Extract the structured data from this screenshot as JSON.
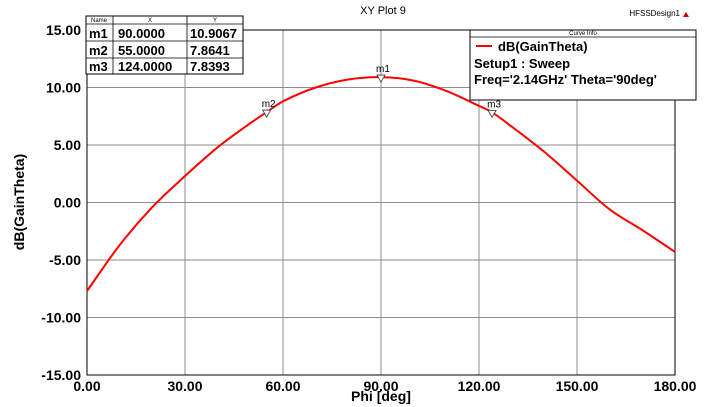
{
  "chart_data": {
    "type": "line",
    "title": "XY Plot 9",
    "design_name": "HFSSDesign1",
    "xlabel": "Phi [deg]",
    "ylabel": "dB(GainTheta)",
    "xlim": [
      0,
      180
    ],
    "ylim": [
      -15,
      15
    ],
    "x_ticks": [
      "0.00",
      "30.00",
      "60.00",
      "90.00",
      "120.00",
      "150.00",
      "180.00"
    ],
    "y_ticks": [
      "15.00",
      "10.00",
      "5.00",
      "0.00",
      "-5.00",
      "-10.00",
      "-15.00"
    ],
    "x_tick_values": [
      0,
      30,
      60,
      90,
      120,
      150,
      180
    ],
    "y_tick_values": [
      15,
      10,
      5,
      0,
      -5,
      -10,
      -15
    ],
    "grid": true,
    "legend_position": "top-right",
    "series": [
      {
        "name": "dB(GainTheta)",
        "color": "#ff0000",
        "x": [
          0,
          10,
          20,
          30,
          40,
          50,
          55,
          60,
          70,
          80,
          90,
          100,
          110,
          120,
          124,
          130,
          140,
          150,
          160,
          170,
          180
        ],
        "values": [
          -7.7,
          -3.7,
          -0.4,
          2.3,
          4.8,
          6.9,
          7.86,
          8.8,
          10.0,
          10.7,
          10.9,
          10.6,
          9.7,
          8.4,
          7.84,
          6.6,
          4.4,
          1.9,
          -0.6,
          -2.4,
          -4.3
        ]
      }
    ],
    "legend": {
      "header": "Curve Info",
      "entries": [
        "dB(GainTheta)",
        "Setup1 : Sweep",
        "Freq='2.14GHz' Theta='90deg'"
      ]
    },
    "markers": {
      "columns": [
        "Name",
        "X",
        "Y"
      ],
      "rows": [
        {
          "name": "m1",
          "x": "90.0000",
          "y": "10.9067"
        },
        {
          "name": "m2",
          "x": "55.0000",
          "y": "7.8641"
        },
        {
          "name": "m3",
          "x": "124.0000",
          "y": "7.8393"
        }
      ],
      "points": [
        {
          "name": "m1",
          "x": 90,
          "y": 10.9067
        },
        {
          "name": "m2",
          "x": 55,
          "y": 7.8641
        },
        {
          "name": "m3",
          "x": 124,
          "y": 7.8393
        }
      ]
    }
  }
}
